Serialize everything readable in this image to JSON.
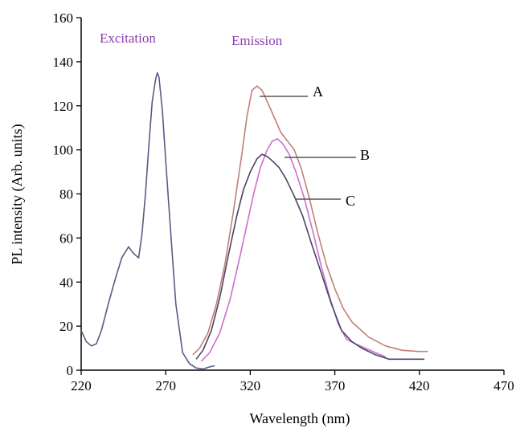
{
  "chart_data": {
    "type": "line",
    "xlabel": "Wavelength (nm)",
    "ylabel": "PL intensity (Arb. units)",
    "xlim": [
      220,
      470
    ],
    "ylim": [
      0,
      160
    ],
    "xticks": [
      220,
      270,
      320,
      370,
      420,
      470
    ],
    "yticks": [
      0,
      20,
      40,
      60,
      80,
      100,
      120,
      140,
      160
    ],
    "grid": false,
    "annotations": [
      {
        "text": "Excitation",
        "color": "#8a3fae"
      },
      {
        "text": "Emission",
        "color": "#8a3fae"
      }
    ],
    "series": [
      {
        "id": "excitation",
        "color": "#5a5a86",
        "x": [
          220,
          223,
          226,
          229,
          232,
          236,
          240,
          244,
          248,
          251,
          254,
          256,
          258,
          260,
          262,
          264,
          265,
          266,
          268,
          270,
          273,
          276,
          280,
          284,
          288,
          292,
          296,
          299
        ],
        "y": [
          18,
          13,
          11,
          12,
          18,
          30,
          41,
          51,
          56,
          53,
          51,
          62,
          80,
          102,
          122,
          132,
          135,
          133,
          118,
          95,
          62,
          30,
          8,
          3,
          1,
          0.5,
          1.5,
          2
        ]
      },
      {
        "name": "A",
        "color": "#c27f78",
        "x": [
          286,
          290,
          295,
          300,
          305,
          310,
          315,
          318,
          321,
          324,
          327,
          330,
          334,
          338,
          342,
          346,
          350,
          355,
          360,
          365,
          370,
          375,
          380,
          390,
          400,
          410,
          420,
          425
        ],
        "y": [
          7,
          10,
          17,
          30,
          48,
          72,
          98,
          115,
          127,
          129,
          127,
          122,
          115,
          108,
          104,
          100,
          92,
          78,
          62,
          48,
          37,
          28,
          22,
          15,
          11,
          9,
          8.5,
          8.5
        ]
      },
      {
        "name": "B",
        "color": "#cc6fcc",
        "x": [
          291,
          296,
          302,
          308,
          314,
          318,
          322,
          326,
          330,
          333,
          336,
          339,
          343,
          347,
          352,
          357,
          362,
          367,
          372,
          377,
          382,
          388,
          394,
          400
        ],
        "y": [
          4,
          8,
          17,
          32,
          52,
          66,
          80,
          92,
          100,
          104,
          105,
          103,
          98,
          90,
          78,
          63,
          47,
          33,
          21,
          14,
          12,
          10,
          8,
          6
        ]
      },
      {
        "name": "C",
        "color": "#4a4466",
        "x": [
          288,
          292,
          297,
          302,
          307,
          312,
          316,
          320,
          324,
          327,
          330,
          333,
          337,
          341,
          346,
          351,
          356,
          362,
          368,
          374,
          380,
          386,
          394,
          402,
          412,
          423
        ],
        "y": [
          5,
          9,
          18,
          33,
          52,
          70,
          82,
          90,
          96,
          98,
          97,
          95,
          92,
          87,
          79,
          70,
          58,
          44,
          30,
          18,
          13,
          10,
          7,
          5,
          5,
          5
        ]
      }
    ],
    "series_labels": [
      "A",
      "B",
      "C"
    ]
  }
}
